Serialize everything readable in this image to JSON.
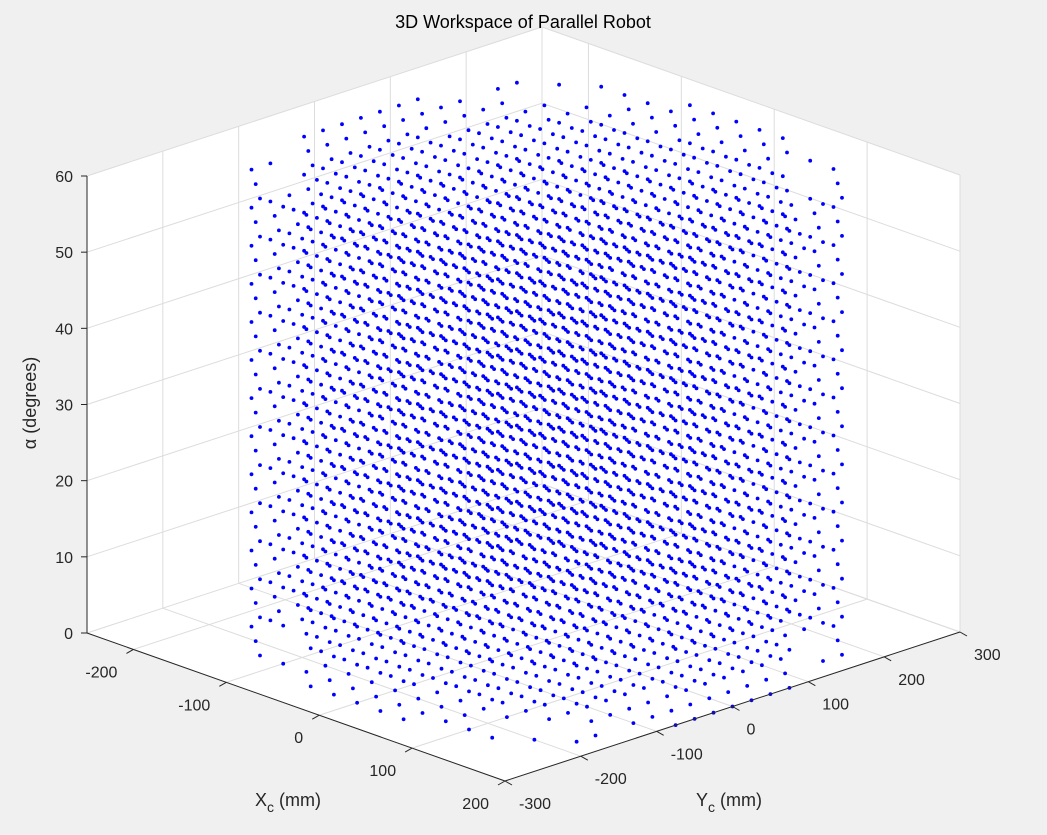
{
  "chart_data": {
    "type": "scatter",
    "projection": "3d-isometric",
    "title": "3D Workspace of Parallel Robot",
    "xlabel": {
      "main": "X",
      "sub": "c",
      "rest": " (mm)"
    },
    "ylabel": {
      "main": "Y",
      "sub": "c",
      "rest": " (mm)"
    },
    "zlabel": {
      "main": "α",
      "rest": " (degrees)"
    },
    "xlim": [
      -250,
      200
    ],
    "ylim": [
      -300,
      300
    ],
    "zlim": [
      0,
      60
    ],
    "xticks": [
      -200,
      -100,
      0,
      100,
      200
    ],
    "yticks": [
      -300,
      -200,
      -100,
      0,
      100,
      200,
      300
    ],
    "zticks": [
      0,
      10,
      20,
      30,
      40,
      50,
      60
    ],
    "xtick_labels": [
      "-200",
      "-100",
      "0",
      "100",
      "200"
    ],
    "ytick_labels": [
      "-300",
      "-200",
      "-100",
      "0",
      "100",
      "200",
      "300"
    ],
    "ztick_labels": [
      "0",
      "10",
      "20",
      "30",
      "40",
      "50",
      "60"
    ],
    "grid": true,
    "background": "#ffffff",
    "series": [
      {
        "marker": "dot",
        "color": "#0000ff",
        "x_range": [
          -200,
          200
        ],
        "y_range": [
          -250,
          250
        ],
        "z_values": [
          0,
          5,
          10,
          15,
          20,
          25,
          30,
          35,
          40,
          45,
          50,
          55,
          60
        ],
        "grid_step": 25,
        "description_region": "dense cylindrical-like workspace, roughly elliptical cross-section per alpha layer"
      }
    ]
  }
}
